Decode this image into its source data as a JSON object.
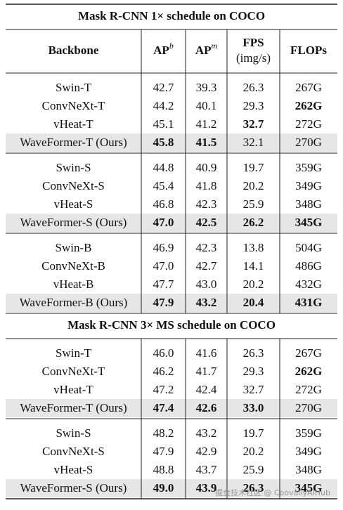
{
  "header": [
    {
      "text": "Backbone"
    },
    {
      "text": "AP",
      "sup": "b"
    },
    {
      "text": "AP",
      "sup": "m"
    },
    {
      "text": "FPS",
      "line2": "(img/s)"
    },
    {
      "text": "FLOPs"
    }
  ],
  "sections": [
    {
      "title": "Mask R-CNN 1× schedule on COCO",
      "blocks": [
        {
          "rows": [
            {
              "cells": [
                "Swin-T",
                "42.7",
                "39.3",
                "26.3",
                "267G"
              ]
            },
            {
              "cells": [
                "ConvNeXt-T",
                "44.2",
                "40.1",
                "29.3",
                "262G"
              ],
              "bold": [
                false,
                false,
                false,
                false,
                true
              ]
            },
            {
              "cells": [
                "vHeat-T",
                "45.1",
                "41.2",
                "32.7",
                "272G"
              ],
              "bold": [
                false,
                false,
                false,
                true,
                false
              ]
            },
            {
              "cells": [
                "WaveFormer-T (Ours)",
                "45.8",
                "41.5",
                "32.1",
                "270G"
              ],
              "bold": [
                false,
                true,
                true,
                false,
                false
              ],
              "highlight": true
            }
          ]
        },
        {
          "rows": [
            {
              "cells": [
                "Swin-S",
                "44.8",
                "40.9",
                "19.7",
                "359G"
              ]
            },
            {
              "cells": [
                "ConvNeXt-S",
                "45.4",
                "41.8",
                "20.2",
                "349G"
              ]
            },
            {
              "cells": [
                "vHeat-S",
                "46.8",
                "42.3",
                "25.9",
                "348G"
              ]
            },
            {
              "cells": [
                "WaveFormer-S (Ours)",
                "47.0",
                "42.5",
                "26.2",
                "345G"
              ],
              "bold": [
                false,
                true,
                true,
                true,
                true
              ],
              "highlight": true
            }
          ]
        },
        {
          "rows": [
            {
              "cells": [
                "Swin-B",
                "46.9",
                "42.3",
                "13.8",
                "504G"
              ]
            },
            {
              "cells": [
                "ConvNeXt-B",
                "47.0",
                "42.7",
                "14.1",
                "486G"
              ]
            },
            {
              "cells": [
                "vHeat-B",
                "47.7",
                "43.0",
                "20.2",
                "432G"
              ]
            },
            {
              "cells": [
                "WaveFormer-B (Ours)",
                "47.9",
                "43.2",
                "20.4",
                "431G"
              ],
              "bold": [
                false,
                true,
                true,
                true,
                true
              ],
              "highlight": true
            }
          ]
        }
      ]
    },
    {
      "title": "Mask R-CNN 3× MS schedule on COCO",
      "blocks": [
        {
          "rows": [
            {
              "cells": [
                "Swin-T",
                "46.0",
                "41.6",
                "26.3",
                "267G"
              ]
            },
            {
              "cells": [
                "ConvNeXt-T",
                "46.2",
                "41.7",
                "29.3",
                "262G"
              ],
              "bold": [
                false,
                false,
                false,
                false,
                true
              ]
            },
            {
              "cells": [
                "vHeat-T",
                "47.2",
                "42.4",
                "32.7",
                "272G"
              ]
            },
            {
              "cells": [
                "WaveFormer-T (Ours)",
                "47.4",
                "42.6",
                "33.0",
                "270G"
              ],
              "bold": [
                false,
                true,
                true,
                true,
                false
              ],
              "highlight": true
            }
          ]
        },
        {
          "rows": [
            {
              "cells": [
                "Swin-S",
                "48.2",
                "43.2",
                "19.7",
                "359G"
              ]
            },
            {
              "cells": [
                "ConvNeXt-S",
                "47.9",
                "42.9",
                "20.2",
                "349G"
              ]
            },
            {
              "cells": [
                "vHeat-S",
                "48.8",
                "43.7",
                "25.9",
                "348G"
              ]
            },
            {
              "cells": [
                "WaveFormer-S (Ours)",
                "49.0",
                "43.9",
                "26.3",
                "345G"
              ],
              "bold": [
                false,
                true,
                true,
                true,
                true
              ],
              "highlight": true
            }
          ]
        }
      ]
    }
  ],
  "watermark": "掘金技术社区 @ CoovallyAIHub"
}
